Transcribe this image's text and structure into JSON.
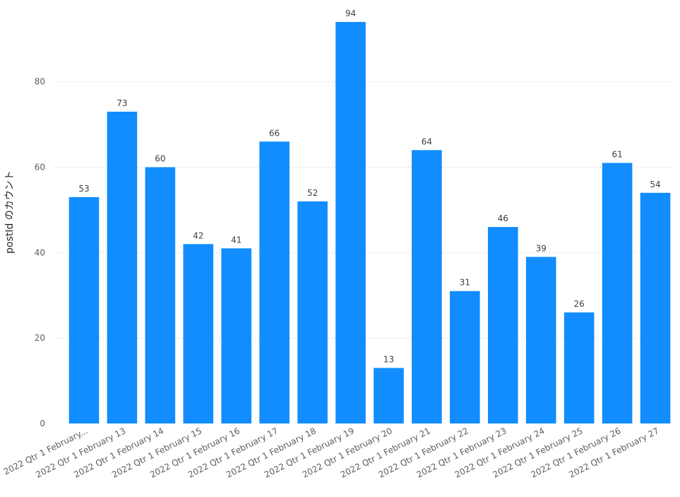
{
  "chart_data": {
    "type": "bar",
    "ylabel": "postId のカウント",
    "xlabel": "",
    "ylim": [
      0,
      96
    ],
    "yticks": [
      0,
      20,
      40,
      60,
      80
    ],
    "grid": true,
    "bar_color": "#118DFF",
    "categories": [
      "2022 Qtr 1 February...",
      "2022 Qtr 1 February 13",
      "2022 Qtr 1 February 14",
      "2022 Qtr 1 February 15",
      "2022 Qtr 1 February 16",
      "2022 Qtr 1 February 17",
      "2022 Qtr 1 February 18",
      "2022 Qtr 1 February 19",
      "2022 Qtr 1 February 20",
      "2022 Qtr 1 February 21",
      "2022 Qtr 1 February 22",
      "2022 Qtr 1 February 23",
      "2022 Qtr 1 February 24",
      "2022 Qtr 1 February 25",
      "2022 Qtr 1 February 26",
      "2022 Qtr 1 February 27"
    ],
    "values": [
      53,
      73,
      60,
      42,
      41,
      66,
      52,
      94,
      13,
      64,
      31,
      46,
      39,
      26,
      61,
      54
    ]
  }
}
